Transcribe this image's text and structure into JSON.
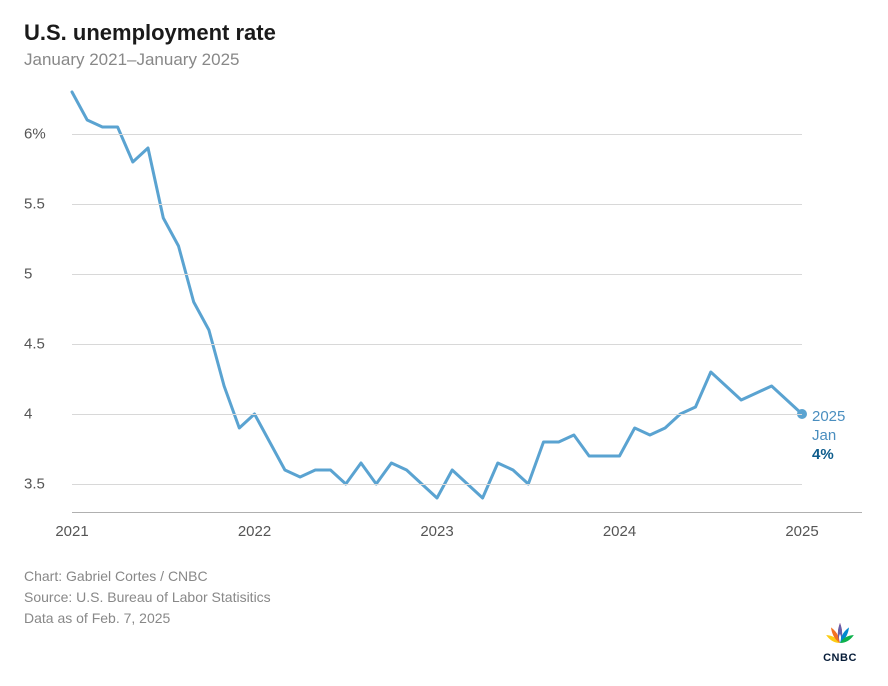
{
  "title": "U.S. unemployment rate",
  "subtitle": "January 2021–January 2025",
  "chart": {
    "type": "line",
    "line_color": "#5aa3d1",
    "line_width": 3,
    "dot_color": "#5aa3d1",
    "dot_radius": 5,
    "grid_color": "#d8d8d8",
    "baseline_color": "#b0b0b0",
    "background_color": "#ffffff",
    "ylim": [
      3.3,
      6.3
    ],
    "yticks": [
      3.5,
      4,
      4.5,
      5,
      5.5,
      6
    ],
    "ytick_labels": [
      "3.5",
      "4",
      "4.5",
      "5",
      "5.5",
      "6%"
    ],
    "xlim_index": [
      0,
      48
    ],
    "xticks_index": [
      0,
      12,
      24,
      36,
      48
    ],
    "xtick_labels": [
      "2021",
      "2022",
      "2023",
      "2024",
      "2025"
    ],
    "tick_fontsize": 15,
    "tick_color": "#555555",
    "values": [
      6.3,
      6.1,
      6.05,
      6.05,
      5.8,
      5.9,
      5.4,
      5.2,
      4.8,
      4.6,
      4.2,
      3.9,
      4.0,
      3.8,
      3.6,
      3.55,
      3.6,
      3.6,
      3.5,
      3.65,
      3.5,
      3.65,
      3.6,
      3.5,
      3.4,
      3.6,
      3.5,
      3.4,
      3.65,
      3.6,
      3.5,
      3.8,
      3.8,
      3.85,
      3.7,
      3.7,
      3.7,
      3.9,
      3.85,
      3.9,
      4.0,
      4.05,
      4.3,
      4.2,
      4.1,
      4.15,
      4.2,
      4.1,
      4.0
    ],
    "annotation": {
      "line1": "2025",
      "line2": "Jan",
      "value": "4%",
      "color": "#4a8ebf",
      "value_color": "#0d5c8c"
    }
  },
  "footer": {
    "chart_credit": "Chart: Gabriel Cortes / CNBC",
    "source": "Source: U.S. Bureau of Labor Statisitics",
    "asof": "Data as of Feb. 7, 2025"
  },
  "logo": {
    "text": "CNBC",
    "text_color": "#071d39",
    "peacock_colors": [
      "#fccc12",
      "#f37021",
      "#cc004c",
      "#6460aa",
      "#0089d0",
      "#0db14b"
    ]
  }
}
